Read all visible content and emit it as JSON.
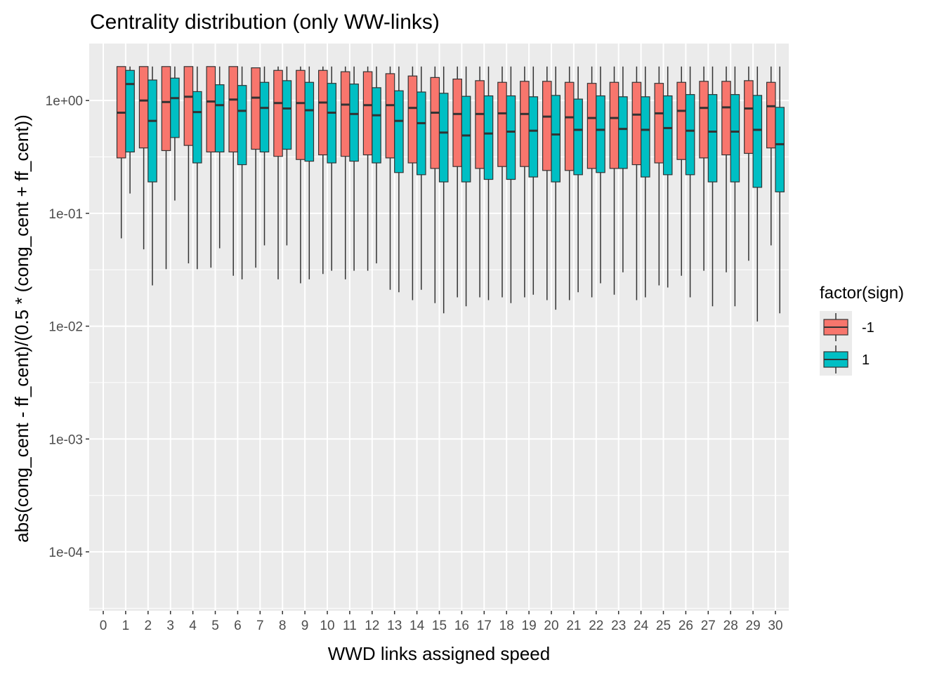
{
  "chart_data": {
    "type": "boxplot",
    "title": "Centrality distribution (only WW-links)",
    "xlabel": "WWD links assigned speed",
    "ylabel": "abs(cong_cent - ff_cent)/(0.5 * (cong_cent + ff_cent))",
    "y_scale": "log10",
    "ylim": [
      3e-05,
      3.2
    ],
    "y_ticks": [
      0.0001,
      0.001,
      0.01,
      0.1,
      1
    ],
    "y_tick_labels": [
      "1e-04",
      "1e-03",
      "1e-02",
      "1e-01",
      "1e+00"
    ],
    "categories": [
      "0",
      "1",
      "2",
      "3",
      "4",
      "5",
      "6",
      "7",
      "8",
      "9",
      "10",
      "11",
      "12",
      "13",
      "14",
      "15",
      "16",
      "17",
      "18",
      "19",
      "20",
      "21",
      "22",
      "23",
      "24",
      "25",
      "26",
      "27",
      "28",
      "29",
      "30"
    ],
    "grid": true,
    "legend": {
      "title": "factor(sign)",
      "placement": "right"
    },
    "series": [
      {
        "name": "-1",
        "color": "#F8766D",
        "boxes": [
          {
            "x": "1",
            "min": 0.06,
            "q1": 0.31,
            "median": 0.78,
            "q3": 2.0,
            "max": 2.0
          },
          {
            "x": "2",
            "min": 0.048,
            "q1": 0.38,
            "median": 1.0,
            "q3": 2.0,
            "max": 2.0
          },
          {
            "x": "3",
            "min": 0.032,
            "q1": 0.36,
            "median": 0.97,
            "q3": 2.0,
            "max": 2.0
          },
          {
            "x": "4",
            "min": 0.036,
            "q1": 0.4,
            "median": 1.08,
            "q3": 2.0,
            "max": 2.0
          },
          {
            "x": "5",
            "min": 0.033,
            "q1": 0.35,
            "median": 0.98,
            "q3": 2.0,
            "max": 2.0
          },
          {
            "x": "6",
            "min": 0.028,
            "q1": 0.35,
            "median": 1.02,
            "q3": 2.0,
            "max": 2.0
          },
          {
            "x": "7",
            "min": 0.033,
            "q1": 0.37,
            "median": 1.06,
            "q3": 1.95,
            "max": 1.95
          },
          {
            "x": "8",
            "min": 0.026,
            "q1": 0.32,
            "median": 0.95,
            "q3": 1.85,
            "max": 2.0
          },
          {
            "x": "9",
            "min": 0.024,
            "q1": 0.3,
            "median": 0.95,
            "q3": 1.85,
            "max": 2.0
          },
          {
            "x": "10",
            "min": 0.029,
            "q1": 0.33,
            "median": 0.96,
            "q3": 1.85,
            "max": 2.0
          },
          {
            "x": "11",
            "min": 0.026,
            "q1": 0.32,
            "median": 0.92,
            "q3": 1.8,
            "max": 2.0
          },
          {
            "x": "12",
            "min": 0.031,
            "q1": 0.33,
            "median": 0.91,
            "q3": 1.8,
            "max": 2.0
          },
          {
            "x": "13",
            "min": 0.021,
            "q1": 0.31,
            "median": 0.91,
            "q3": 1.73,
            "max": 2.0
          },
          {
            "x": "14",
            "min": 0.017,
            "q1": 0.28,
            "median": 0.86,
            "q3": 1.65,
            "max": 2.0
          },
          {
            "x": "15",
            "min": 0.016,
            "q1": 0.25,
            "median": 0.78,
            "q3": 1.6,
            "max": 2.0
          },
          {
            "x": "16",
            "min": 0.018,
            "q1": 0.26,
            "median": 0.76,
            "q3": 1.55,
            "max": 2.0
          },
          {
            "x": "17",
            "min": 0.018,
            "q1": 0.25,
            "median": 0.76,
            "q3": 1.5,
            "max": 2.0
          },
          {
            "x": "18",
            "min": 0.018,
            "q1": 0.26,
            "median": 0.77,
            "q3": 1.45,
            "max": 2.0
          },
          {
            "x": "19",
            "min": 0.018,
            "q1": 0.26,
            "median": 0.76,
            "q3": 1.48,
            "max": 2.0
          },
          {
            "x": "20",
            "min": 0.017,
            "q1": 0.24,
            "median": 0.72,
            "q3": 1.48,
            "max": 2.0
          },
          {
            "x": "21",
            "min": 0.017,
            "q1": 0.24,
            "median": 0.71,
            "q3": 1.45,
            "max": 2.0
          },
          {
            "x": "22",
            "min": 0.018,
            "q1": 0.25,
            "median": 0.7,
            "q3": 1.42,
            "max": 2.0
          },
          {
            "x": "23",
            "min": 0.019,
            "q1": 0.25,
            "median": 0.7,
            "q3": 1.45,
            "max": 2.0
          },
          {
            "x": "24",
            "min": 0.017,
            "q1": 0.27,
            "median": 0.75,
            "q3": 1.45,
            "max": 2.0
          },
          {
            "x": "25",
            "min": 0.023,
            "q1": 0.28,
            "median": 0.77,
            "q3": 1.42,
            "max": 2.0
          },
          {
            "x": "26",
            "min": 0.028,
            "q1": 0.3,
            "median": 0.81,
            "q3": 1.45,
            "max": 2.0
          },
          {
            "x": "27",
            "min": 0.031,
            "q1": 0.31,
            "median": 0.86,
            "q3": 1.48,
            "max": 2.0
          },
          {
            "x": "28",
            "min": 0.03,
            "q1": 0.33,
            "median": 0.87,
            "q3": 1.48,
            "max": 2.0
          },
          {
            "x": "29",
            "min": 0.038,
            "q1": 0.34,
            "median": 0.85,
            "q3": 1.5,
            "max": 2.0
          },
          {
            "x": "30",
            "min": 0.052,
            "q1": 0.38,
            "median": 0.89,
            "q3": 1.45,
            "max": 2.0
          }
        ]
      },
      {
        "name": "1",
        "color": "#00BFC4",
        "boxes": [
          {
            "x": "1",
            "min": 0.15,
            "q1": 0.35,
            "median": 1.4,
            "q3": 1.85,
            "max": 2.0
          },
          {
            "x": "2",
            "min": 0.023,
            "q1": 0.19,
            "median": 0.66,
            "q3": 1.52,
            "max": 2.0
          },
          {
            "x": "3",
            "min": 0.13,
            "q1": 0.47,
            "median": 1.05,
            "q3": 1.58,
            "max": 2.0
          },
          {
            "x": "4",
            "min": 0.032,
            "q1": 0.28,
            "median": 0.79,
            "q3": 1.2,
            "max": 2.0
          },
          {
            "x": "5",
            "min": 0.049,
            "q1": 0.35,
            "median": 0.91,
            "q3": 1.38,
            "max": 2.0
          },
          {
            "x": "6",
            "min": 0.026,
            "q1": 0.27,
            "median": 0.81,
            "q3": 1.36,
            "max": 2.0
          },
          {
            "x": "7",
            "min": 0.052,
            "q1": 0.35,
            "median": 0.86,
            "q3": 1.45,
            "max": 2.0
          },
          {
            "x": "8",
            "min": 0.052,
            "q1": 0.37,
            "median": 0.85,
            "q3": 1.5,
            "max": 2.0
          },
          {
            "x": "9",
            "min": 0.026,
            "q1": 0.29,
            "median": 0.82,
            "q3": 1.45,
            "max": 2.0
          },
          {
            "x": "10",
            "min": 0.031,
            "q1": 0.28,
            "median": 0.78,
            "q3": 1.42,
            "max": 2.0
          },
          {
            "x": "11",
            "min": 0.031,
            "q1": 0.29,
            "median": 0.76,
            "q3": 1.4,
            "max": 2.0
          },
          {
            "x": "12",
            "min": 0.036,
            "q1": 0.28,
            "median": 0.74,
            "q3": 1.3,
            "max": 2.0
          },
          {
            "x": "13",
            "min": 0.02,
            "q1": 0.23,
            "median": 0.66,
            "q3": 1.22,
            "max": 2.0
          },
          {
            "x": "14",
            "min": 0.021,
            "q1": 0.22,
            "median": 0.63,
            "q3": 1.19,
            "max": 2.0
          },
          {
            "x": "15",
            "min": 0.013,
            "q1": 0.19,
            "median": 0.52,
            "q3": 1.16,
            "max": 2.0
          },
          {
            "x": "16",
            "min": 0.015,
            "q1": 0.19,
            "median": 0.49,
            "q3": 1.09,
            "max": 2.0
          },
          {
            "x": "17",
            "min": 0.017,
            "q1": 0.2,
            "median": 0.51,
            "q3": 1.1,
            "max": 2.0
          },
          {
            "x": "18",
            "min": 0.016,
            "q1": 0.2,
            "median": 0.53,
            "q3": 1.1,
            "max": 2.0
          },
          {
            "x": "19",
            "min": 0.019,
            "q1": 0.21,
            "median": 0.54,
            "q3": 1.08,
            "max": 2.0
          },
          {
            "x": "20",
            "min": 0.014,
            "q1": 0.19,
            "median": 0.5,
            "q3": 1.11,
            "max": 2.0
          },
          {
            "x": "21",
            "min": 0.02,
            "q1": 0.22,
            "median": 0.55,
            "q3": 1.03,
            "max": 2.0
          },
          {
            "x": "22",
            "min": 0.024,
            "q1": 0.23,
            "median": 0.55,
            "q3": 1.1,
            "max": 2.0
          },
          {
            "x": "23",
            "min": 0.03,
            "q1": 0.25,
            "median": 0.56,
            "q3": 1.08,
            "max": 2.0
          },
          {
            "x": "24",
            "min": 0.018,
            "q1": 0.21,
            "median": 0.55,
            "q3": 1.08,
            "max": 2.0
          },
          {
            "x": "25",
            "min": 0.022,
            "q1": 0.22,
            "median": 0.57,
            "q3": 1.1,
            "max": 2.0
          },
          {
            "x": "26",
            "min": 0.018,
            "q1": 0.22,
            "median": 0.54,
            "q3": 1.13,
            "max": 2.0
          },
          {
            "x": "27",
            "min": 0.015,
            "q1": 0.19,
            "median": 0.53,
            "q3": 1.13,
            "max": 2.0
          },
          {
            "x": "28",
            "min": 0.015,
            "q1": 0.19,
            "median": 0.53,
            "q3": 1.13,
            "max": 2.0
          },
          {
            "x": "29",
            "min": 0.011,
            "q1": 0.17,
            "median": 0.55,
            "q3": 1.11,
            "max": 2.0
          },
          {
            "x": "30",
            "min": 0.013,
            "q1": 0.155,
            "median": 0.41,
            "q3": 0.87,
            "max": 2.0
          }
        ]
      }
    ]
  }
}
